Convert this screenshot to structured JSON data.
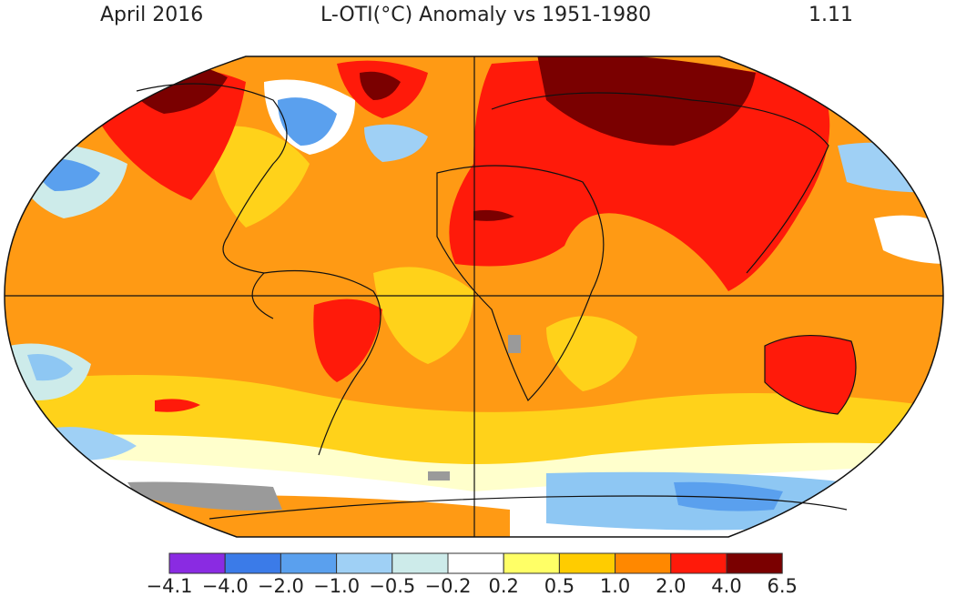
{
  "header": {
    "date": "April 2016",
    "title": "L-OTI(°C) Anomaly vs 1951-1980",
    "global_mean": "1.11"
  },
  "legend": {
    "colors": [
      "#8a2be2",
      "#3b7be8",
      "#5aa0ee",
      "#9fd0f5",
      "#cdebea",
      "#ffffff",
      "#ffff66",
      "#ffcc00",
      "#ff8800",
      "#ff1a0a",
      "#7a0000"
    ],
    "labels": [
      "−4.1",
      "−4.0",
      "−2.0",
      "−1.0",
      "−0.5",
      "−0.2",
      "0.2",
      "0.5",
      "1.0",
      "2.0",
      "4.0",
      "6.5"
    ]
  },
  "map": {
    "projection": "robinson-like",
    "has_graticule_axes": true,
    "missing_data_color": "#9a9a9a"
  }
}
